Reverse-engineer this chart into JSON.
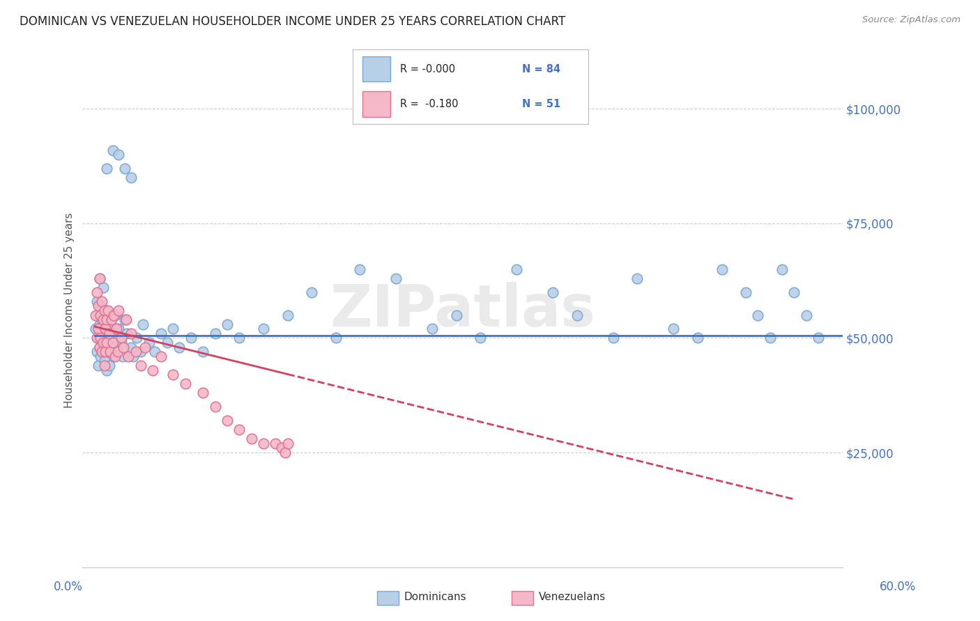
{
  "title": "DOMINICAN VS VENEZUELAN HOUSEHOLDER INCOME UNDER 25 YEARS CORRELATION CHART",
  "source": "Source: ZipAtlas.com",
  "ylabel": "Householder Income Under 25 years",
  "xlim": [
    0.0,
    0.62
  ],
  "ylim": [
    0,
    112000
  ],
  "yticks": [
    25000,
    50000,
    75000,
    100000
  ],
  "ytick_labels": [
    "$25,000",
    "$50,000",
    "$75,000",
    "$100,000"
  ],
  "watermark": "ZIPatlas",
  "legend_r1": "R = -0.000",
  "legend_n1": "N = 84",
  "legend_r2": "R =  -0.180",
  "legend_n2": "N = 51",
  "blue_face": "#b8cfe8",
  "blue_edge": "#7ba7d0",
  "pink_face": "#f4b8c8",
  "pink_edge": "#e07090",
  "line_blue": "#4472c4",
  "line_pink": "#d44060",
  "grid_color": "#cccccc",
  "title_color": "#222222",
  "source_color": "#888888",
  "ylabel_color": "#555555",
  "axis_label_color": "#4472c4",
  "dom_x": [
    0.001,
    0.002,
    0.002,
    0.003,
    0.003,
    0.003,
    0.004,
    0.004,
    0.004,
    0.005,
    0.005,
    0.005,
    0.006,
    0.006,
    0.007,
    0.007,
    0.007,
    0.008,
    0.008,
    0.009,
    0.009,
    0.01,
    0.01,
    0.011,
    0.011,
    0.012,
    0.012,
    0.013,
    0.014,
    0.015,
    0.016,
    0.017,
    0.018,
    0.019,
    0.02,
    0.022,
    0.023,
    0.025,
    0.027,
    0.03,
    0.032,
    0.035,
    0.038,
    0.04,
    0.045,
    0.05,
    0.055,
    0.06,
    0.065,
    0.07,
    0.08,
    0.09,
    0.1,
    0.11,
    0.12,
    0.14,
    0.16,
    0.18,
    0.2,
    0.22,
    0.25,
    0.28,
    0.3,
    0.32,
    0.35,
    0.38,
    0.4,
    0.43,
    0.45,
    0.48,
    0.5,
    0.52,
    0.54,
    0.55,
    0.56,
    0.57,
    0.58,
    0.59,
    0.6,
    0.01,
    0.015,
    0.02,
    0.025,
    0.03
  ],
  "dom_y": [
    52000,
    58000,
    47000,
    55000,
    50000,
    44000,
    53000,
    48000,
    63000,
    51000,
    46000,
    57000,
    49000,
    54000,
    52000,
    47000,
    61000,
    50000,
    45000,
    53000,
    48000,
    56000,
    43000,
    52000,
    47000,
    50000,
    44000,
    53000,
    51000,
    48000,
    46000,
    55000,
    50000,
    47000,
    52000,
    49000,
    46000,
    54000,
    51000,
    48000,
    46000,
    50000,
    47000,
    53000,
    49000,
    47000,
    51000,
    49000,
    52000,
    48000,
    50000,
    47000,
    51000,
    53000,
    50000,
    52000,
    55000,
    60000,
    50000,
    65000,
    63000,
    52000,
    55000,
    50000,
    65000,
    60000,
    55000,
    50000,
    63000,
    52000,
    50000,
    65000,
    60000,
    55000,
    50000,
    65000,
    60000,
    55000,
    50000,
    87000,
    91000,
    90000,
    87000,
    85000
  ],
  "ven_x": [
    0.001,
    0.002,
    0.002,
    0.003,
    0.003,
    0.004,
    0.004,
    0.005,
    0.005,
    0.006,
    0.006,
    0.007,
    0.007,
    0.008,
    0.008,
    0.009,
    0.009,
    0.01,
    0.01,
    0.011,
    0.012,
    0.013,
    0.014,
    0.015,
    0.016,
    0.017,
    0.018,
    0.019,
    0.02,
    0.022,
    0.024,
    0.026,
    0.028,
    0.03,
    0.034,
    0.038,
    0.042,
    0.048,
    0.055,
    0.065,
    0.075,
    0.09,
    0.1,
    0.11,
    0.12,
    0.13,
    0.14,
    0.15,
    0.155,
    0.158,
    0.16
  ],
  "ven_y": [
    55000,
    60000,
    50000,
    57000,
    52000,
    63000,
    48000,
    55000,
    50000,
    58000,
    47000,
    54000,
    49000,
    56000,
    44000,
    52000,
    47000,
    54000,
    49000,
    56000,
    51000,
    47000,
    54000,
    49000,
    55000,
    46000,
    52000,
    47000,
    56000,
    50000,
    48000,
    54000,
    46000,
    51000,
    47000,
    44000,
    48000,
    43000,
    46000,
    42000,
    40000,
    38000,
    35000,
    32000,
    30000,
    28000,
    27000,
    27000,
    26000,
    25000,
    27000
  ]
}
